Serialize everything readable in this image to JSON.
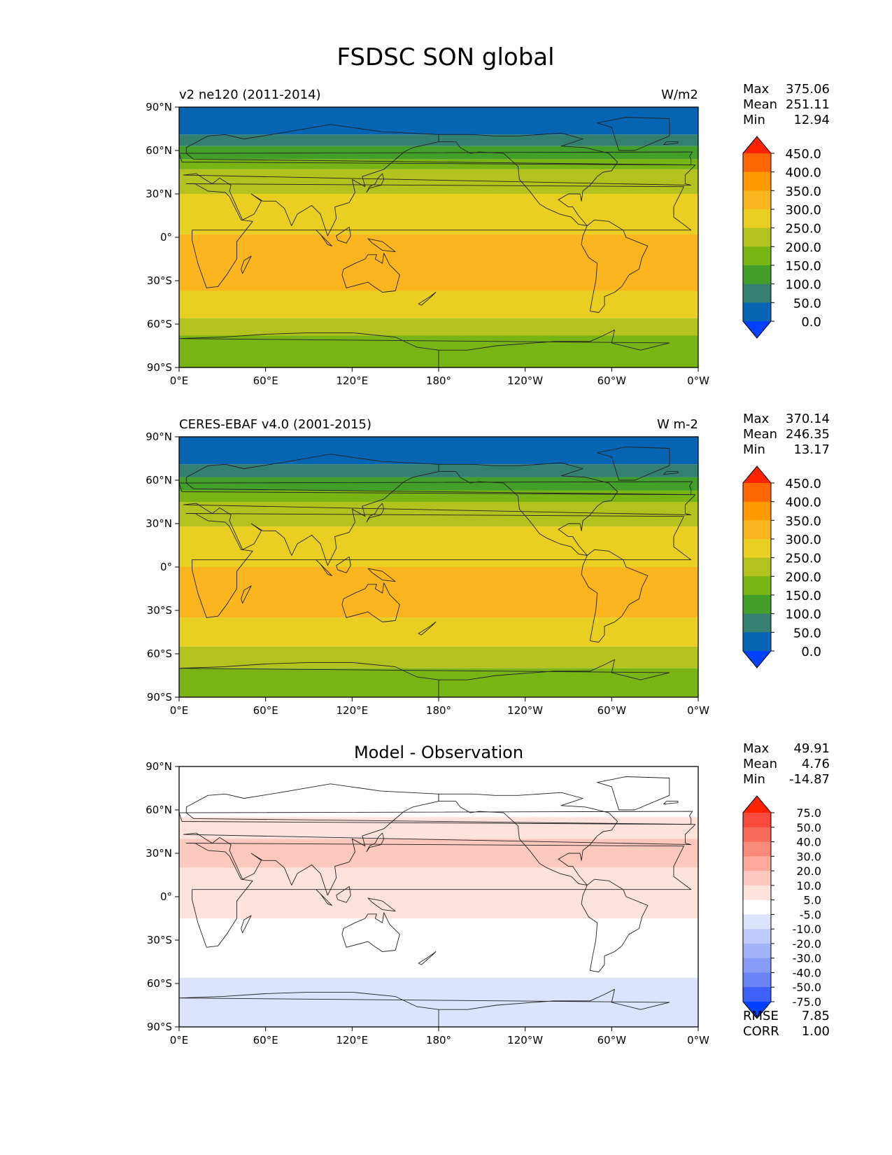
{
  "title": "FSDSC SON global",
  "lat_ticks": [
    "90°N",
    "60°N",
    "30°N",
    "0°",
    "30°S",
    "60°S",
    "90°S"
  ],
  "lon_ticks": [
    "0°E",
    "60°E",
    "120°E",
    "180°",
    "120°W",
    "60°W",
    "0°W"
  ],
  "panels": [
    {
      "left_title": "v2 ne120 (2011-2014)",
      "center_title": "",
      "right_title": "W/m2",
      "stats": [
        {
          "label": "Max",
          "value": "375.06"
        },
        {
          "label": "Mean",
          "value": "251.11"
        },
        {
          "label": "Min",
          "value": "12.94"
        }
      ],
      "colorbar": {
        "levels": [
          "450.0",
          "400.0",
          "350.0",
          "300.0",
          "250.0",
          "200.0",
          "150.0",
          "100.0",
          "50.0",
          "0.0"
        ],
        "colors": [
          "#FF2200",
          "#FF6600",
          "#FF9900",
          "#FBB51E",
          "#E8CF22",
          "#B2C21E",
          "#78B414",
          "#42A02A",
          "#348070",
          "#0565B2",
          "#0040FF"
        ]
      },
      "footer": []
    },
    {
      "left_title": "CERES-EBAF v4.0 (2001-2015)",
      "center_title": "",
      "right_title": "W m-2",
      "stats": [
        {
          "label": "Max",
          "value": "370.14"
        },
        {
          "label": "Mean",
          "value": "246.35"
        },
        {
          "label": "Min",
          "value": "13.17"
        }
      ],
      "colorbar": {
        "levels": [
          "450.0",
          "400.0",
          "350.0",
          "300.0",
          "250.0",
          "200.0",
          "150.0",
          "100.0",
          "50.0",
          "0.0"
        ],
        "colors": [
          "#FF2200",
          "#FF6600",
          "#FF9900",
          "#FBB51E",
          "#E8CF22",
          "#B2C21E",
          "#78B414",
          "#42A02A",
          "#348070",
          "#0565B2",
          "#0040FF"
        ]
      },
      "footer": []
    },
    {
      "left_title": "",
      "center_title": "Model - Observation",
      "right_title": "",
      "stats": [
        {
          "label": "Max",
          "value": "49.91"
        },
        {
          "label": "Mean",
          "value": "4.76"
        },
        {
          "label": "Min",
          "value": "-14.87"
        }
      ],
      "colorbar": {
        "levels": [
          "75.0",
          "50.0",
          "40.0",
          "30.0",
          "20.0",
          "10.0",
          "5.0",
          "-5.0",
          "-10.0",
          "-20.0",
          "-30.0",
          "-40.0",
          "-50.0",
          "-75.0"
        ],
        "colors": [
          "#FF2200",
          "#F84A3C",
          "#F86A5A",
          "#FA8B7B",
          "#FCA99B",
          "#FDC8BE",
          "#FEE3DC",
          "#FFFFFF",
          "#DCE3FC",
          "#BFCBFA",
          "#A3B4F8",
          "#869CF6",
          "#6A84F5",
          "#3D60F8",
          "#0040FF"
        ]
      },
      "footer": [
        {
          "label": "RMSE",
          "value": "7.85"
        },
        {
          "label": "CORR",
          "value": "1.00"
        }
      ]
    }
  ],
  "chart_data": [
    {
      "type": "heatmap",
      "title": "v2 ne120 (2011-2014)",
      "units": "W/m2",
      "x": [
        "0°E",
        "60°E",
        "120°E",
        "180°",
        "120°W",
        "60°W",
        "0°W"
      ],
      "y": [
        "90°N",
        "60°N",
        "30°N",
        "0°",
        "30°S",
        "60°S",
        "90°S"
      ],
      "xlim": [
        0,
        360
      ],
      "ylim": [
        -90,
        90
      ],
      "zonal_bands": [
        {
          "lat_from": 90,
          "lat_to": 71,
          "value": 25
        },
        {
          "lat_from": 71,
          "lat_to": 63,
          "value": 75
        },
        {
          "lat_from": 63,
          "lat_to": 54,
          "value": 125
        },
        {
          "lat_from": 54,
          "lat_to": 47,
          "value": 175
        },
        {
          "lat_from": 47,
          "lat_to": 30,
          "value": 225
        },
        {
          "lat_from": 30,
          "lat_to": 2,
          "value": 275
        },
        {
          "lat_from": 2,
          "lat_to": -37,
          "value": 325
        },
        {
          "lat_from": -37,
          "lat_to": -56,
          "value": 275
        },
        {
          "lat_from": -56,
          "lat_to": -68,
          "value": 225
        },
        {
          "lat_from": -68,
          "lat_to": -90,
          "value": 175
        }
      ],
      "levels": [
        0,
        50,
        100,
        150,
        200,
        250,
        300,
        350,
        400,
        450
      ]
    },
    {
      "type": "heatmap",
      "title": "CERES-EBAF v4.0 (2001-2015)",
      "units": "W m-2",
      "x": [
        "0°E",
        "60°E",
        "120°E",
        "180°",
        "120°W",
        "60°W",
        "0°W"
      ],
      "y": [
        "90°N",
        "60°N",
        "30°N",
        "0°",
        "30°S",
        "60°S",
        "90°S"
      ],
      "xlim": [
        0,
        360
      ],
      "ylim": [
        -90,
        90
      ],
      "zonal_bands": [
        {
          "lat_from": 90,
          "lat_to": 71,
          "value": 25
        },
        {
          "lat_from": 71,
          "lat_to": 62,
          "value": 75
        },
        {
          "lat_from": 62,
          "lat_to": 53,
          "value": 125
        },
        {
          "lat_from": 53,
          "lat_to": 45,
          "value": 175
        },
        {
          "lat_from": 45,
          "lat_to": 28,
          "value": 225
        },
        {
          "lat_from": 28,
          "lat_to": 0,
          "value": 275
        },
        {
          "lat_from": 0,
          "lat_to": -35,
          "value": 325
        },
        {
          "lat_from": -35,
          "lat_to": -55,
          "value": 275
        },
        {
          "lat_from": -55,
          "lat_to": -70,
          "value": 225
        },
        {
          "lat_from": -70,
          "lat_to": -90,
          "value": 175
        }
      ],
      "levels": [
        0,
        50,
        100,
        150,
        200,
        250,
        300,
        350,
        400,
        450
      ]
    },
    {
      "type": "heatmap",
      "title": "Model - Observation",
      "x": [
        "0°E",
        "60°E",
        "120°E",
        "180°",
        "120°W",
        "60°W",
        "0°W"
      ],
      "y": [
        "90°N",
        "60°N",
        "30°N",
        "0°",
        "30°S",
        "60°S",
        "90°S"
      ],
      "xlim": [
        0,
        360
      ],
      "ylim": [
        -90,
        90
      ],
      "zonal_bands": [
        {
          "lat_from": 90,
          "lat_to": 55,
          "value": 0
        },
        {
          "lat_from": 55,
          "lat_to": 40,
          "value": 7.5
        },
        {
          "lat_from": 40,
          "lat_to": 20,
          "value": 15
        },
        {
          "lat_from": 20,
          "lat_to": -15,
          "value": 7.5
        },
        {
          "lat_from": -15,
          "lat_to": -56,
          "value": 0
        },
        {
          "lat_from": -56,
          "lat_to": -90,
          "value": -7.5
        }
      ],
      "levels": [
        -75,
        -50,
        -40,
        -30,
        -20,
        -10,
        -5,
        5,
        10,
        20,
        30,
        40,
        50,
        75
      ]
    }
  ]
}
